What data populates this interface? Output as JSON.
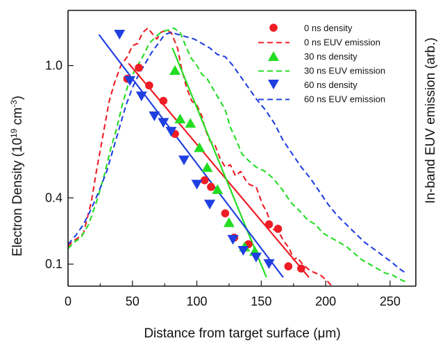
{
  "chart_data": {
    "type": "scatter",
    "xlabel_prefix": "Distance from target surface (",
    "xlabel_symbol": "μ",
    "xlabel_suffix": "m)",
    "ylabel_prefix": "Electron Density (10",
    "ylabel_sup1": "19",
    "ylabel_mid": " cm",
    "ylabel_sup2": "-3",
    "ylabel_suffix": ")",
    "right_label": "In-band EUV emission (arb.)",
    "x_ticks": [
      "0",
      "50",
      "100",
      "150",
      "200",
      "250"
    ],
    "y_ticks": [
      "0.1",
      "0.4",
      "1.0"
    ],
    "x_range": [
      0,
      270
    ],
    "y_range": [
      0,
      1.25
    ],
    "colors": {
      "red": "#ee1c24",
      "green": "#22dd22",
      "blue": "#1f3fe0"
    },
    "legend": [
      {
        "label": "0 ns density",
        "color": "red",
        "type": "circle"
      },
      {
        "label": "0 ns EUV emission",
        "color": "red",
        "type": "dash"
      },
      {
        "label": "30 ns density",
        "color": "green",
        "type": "triangle-up"
      },
      {
        "label": "30 ns EUV emission",
        "color": "green",
        "type": "dash"
      },
      {
        "label": "60 ns density",
        "color": "blue",
        "type": "triangle-down"
      },
      {
        "label": "60 ns EUV emission",
        "color": "blue",
        "type": "dash"
      }
    ],
    "density_series": [
      {
        "name": "0 ns density",
        "color": "red",
        "marker": "circle",
        "points": [
          [
            46,
            0.94
          ],
          [
            55,
            0.99
          ],
          [
            63,
            0.91
          ],
          [
            74,
            0.84
          ],
          [
            83,
            0.69
          ],
          [
            106,
            0.48
          ],
          [
            111,
            0.45
          ],
          [
            122,
            0.33
          ],
          [
            129,
            0.22
          ],
          [
            140,
            0.19
          ],
          [
            156,
            0.28
          ],
          [
            163,
            0.26
          ],
          [
            171,
            0.09
          ],
          [
            181,
            0.08
          ]
        ]
      },
      {
        "name": "30 ns density",
        "color": "green",
        "marker": "triangle-up",
        "points": [
          [
            83,
            0.98
          ],
          [
            87,
            0.76
          ],
          [
            95,
            0.74
          ],
          [
            102,
            0.63
          ],
          [
            108,
            0.54
          ],
          [
            116,
            0.44
          ],
          [
            125,
            0.29
          ],
          [
            137,
            0.18
          ],
          [
            145,
            0.16
          ]
        ]
      },
      {
        "name": "60 ns density",
        "color": "blue",
        "marker": "triangle-down",
        "points": [
          [
            40,
            1.14
          ],
          [
            48,
            0.93
          ],
          [
            57,
            0.86
          ],
          [
            67,
            0.77
          ],
          [
            74,
            0.74
          ],
          [
            80,
            0.7
          ],
          [
            90,
            0.57
          ],
          [
            100,
            0.46
          ],
          [
            110,
            0.37
          ],
          [
            128,
            0.21
          ],
          [
            136,
            0.16
          ],
          [
            146,
            0.13
          ],
          [
            156,
            0.1
          ]
        ]
      }
    ],
    "fit_lines": [
      {
        "name": "0 ns fit",
        "color": "red",
        "from": [
          47,
          1.01
        ],
        "to": [
          187,
          0.04
        ]
      },
      {
        "name": "30 ns fit",
        "color": "green",
        "from": [
          81,
          1.08
        ],
        "to": [
          154,
          0.04
        ]
      },
      {
        "name": "60 ns fit",
        "color": "blue",
        "from": [
          24,
          1.14
        ],
        "to": [
          167,
          0.04
        ]
      }
    ],
    "emission_series": [
      {
        "name": "0 ns EUV emission",
        "color": "red",
        "points": [
          [
            0,
            0.18
          ],
          [
            3,
            0.2
          ],
          [
            8,
            0.22
          ],
          [
            12,
            0.24
          ],
          [
            18,
            0.38
          ],
          [
            22,
            0.52
          ],
          [
            27,
            0.68
          ],
          [
            32,
            0.84
          ],
          [
            36,
            0.92
          ],
          [
            41,
            1.0
          ],
          [
            46,
            1.04
          ],
          [
            50,
            1.09
          ],
          [
            54,
            1.1
          ],
          [
            58,
            1.15
          ],
          [
            62,
            1.17
          ],
          [
            66,
            1.14
          ],
          [
            69,
            1.12
          ],
          [
            72,
            1.15
          ],
          [
            76,
            1.16
          ],
          [
            80,
            1.15
          ],
          [
            85,
            1.08
          ],
          [
            88,
            0.99
          ],
          [
            92,
            0.9
          ],
          [
            96,
            0.84
          ],
          [
            100,
            0.82
          ],
          [
            104,
            0.77
          ],
          [
            106,
            0.72
          ],
          [
            110,
            0.66
          ],
          [
            114,
            0.64
          ],
          [
            118,
            0.58
          ],
          [
            122,
            0.54
          ],
          [
            126,
            0.55
          ],
          [
            130,
            0.5
          ],
          [
            134,
            0.52
          ],
          [
            138,
            0.48
          ],
          [
            141,
            0.46
          ],
          [
            146,
            0.45
          ],
          [
            151,
            0.37
          ],
          [
            154,
            0.34
          ],
          [
            159,
            0.26
          ],
          [
            164,
            0.24
          ],
          [
            168,
            0.2
          ],
          [
            172,
            0.17
          ],
          [
            175,
            0.12
          ],
          [
            178,
            0.13
          ],
          [
            182,
            0.1
          ],
          [
            188,
            0.07
          ],
          [
            192,
            0.06
          ],
          [
            196,
            0.05
          ],
          [
            200,
            0.03
          ],
          [
            205,
            0.0
          ]
        ]
      },
      {
        "name": "30 ns EUV emission",
        "color": "green",
        "points": [
          [
            0,
            0.17
          ],
          [
            5,
            0.2
          ],
          [
            10,
            0.22
          ],
          [
            16,
            0.28
          ],
          [
            22,
            0.38
          ],
          [
            28,
            0.5
          ],
          [
            33,
            0.62
          ],
          [
            38,
            0.72
          ],
          [
            42,
            0.82
          ],
          [
            47,
            0.92
          ],
          [
            52,
            0.98
          ],
          [
            58,
            1.04
          ],
          [
            63,
            1.1
          ],
          [
            68,
            1.13
          ],
          [
            72,
            1.15
          ],
          [
            77,
            1.16
          ],
          [
            82,
            1.17
          ],
          [
            87,
            1.15
          ],
          [
            92,
            1.08
          ],
          [
            96,
            1.03
          ],
          [
            100,
            1.0
          ],
          [
            104,
            0.96
          ],
          [
            108,
            0.94
          ],
          [
            112,
            0.9
          ],
          [
            116,
            0.86
          ],
          [
            122,
            0.8
          ],
          [
            126,
            0.72
          ],
          [
            130,
            0.67
          ],
          [
            135,
            0.6
          ],
          [
            140,
            0.57
          ],
          [
            146,
            0.54
          ],
          [
            153,
            0.52
          ],
          [
            159,
            0.49
          ],
          [
            166,
            0.44
          ],
          [
            173,
            0.38
          ],
          [
            180,
            0.34
          ],
          [
            186,
            0.3
          ],
          [
            192,
            0.28
          ],
          [
            198,
            0.24
          ],
          [
            204,
            0.22
          ],
          [
            210,
            0.2
          ],
          [
            216,
            0.18
          ],
          [
            222,
            0.15
          ],
          [
            228,
            0.12
          ],
          [
            234,
            0.1
          ],
          [
            240,
            0.08
          ],
          [
            246,
            0.06
          ],
          [
            252,
            0.05
          ],
          [
            258,
            0.03
          ],
          [
            262,
            0.02
          ]
        ]
      },
      {
        "name": "60 ns EUV emission",
        "color": "blue",
        "points": [
          [
            0,
            0.19
          ],
          [
            6,
            0.23
          ],
          [
            12,
            0.28
          ],
          [
            18,
            0.35
          ],
          [
            24,
            0.43
          ],
          [
            30,
            0.52
          ],
          [
            35,
            0.62
          ],
          [
            40,
            0.72
          ],
          [
            45,
            0.82
          ],
          [
            50,
            0.9
          ],
          [
            55,
            0.96
          ],
          [
            60,
            1.01
          ],
          [
            65,
            1.06
          ],
          [
            70,
            1.1
          ],
          [
            75,
            1.14
          ],
          [
            80,
            1.15
          ],
          [
            86,
            1.14
          ],
          [
            92,
            1.13
          ],
          [
            98,
            1.12
          ],
          [
            104,
            1.1
          ],
          [
            110,
            1.08
          ],
          [
            116,
            1.05
          ],
          [
            122,
            1.04
          ],
          [
            128,
            1.0
          ],
          [
            134,
            0.95
          ],
          [
            140,
            0.9
          ],
          [
            146,
            0.85
          ],
          [
            153,
            0.8
          ],
          [
            160,
            0.74
          ],
          [
            167,
            0.66
          ],
          [
            174,
            0.6
          ],
          [
            181,
            0.54
          ],
          [
            188,
            0.49
          ],
          [
            195,
            0.43
          ],
          [
            202,
            0.37
          ],
          [
            209,
            0.32
          ],
          [
            216,
            0.28
          ],
          [
            223,
            0.24
          ],
          [
            230,
            0.2
          ],
          [
            237,
            0.17
          ],
          [
            244,
            0.14
          ],
          [
            251,
            0.11
          ],
          [
            257,
            0.08
          ],
          [
            262,
            0.06
          ]
        ]
      }
    ]
  }
}
